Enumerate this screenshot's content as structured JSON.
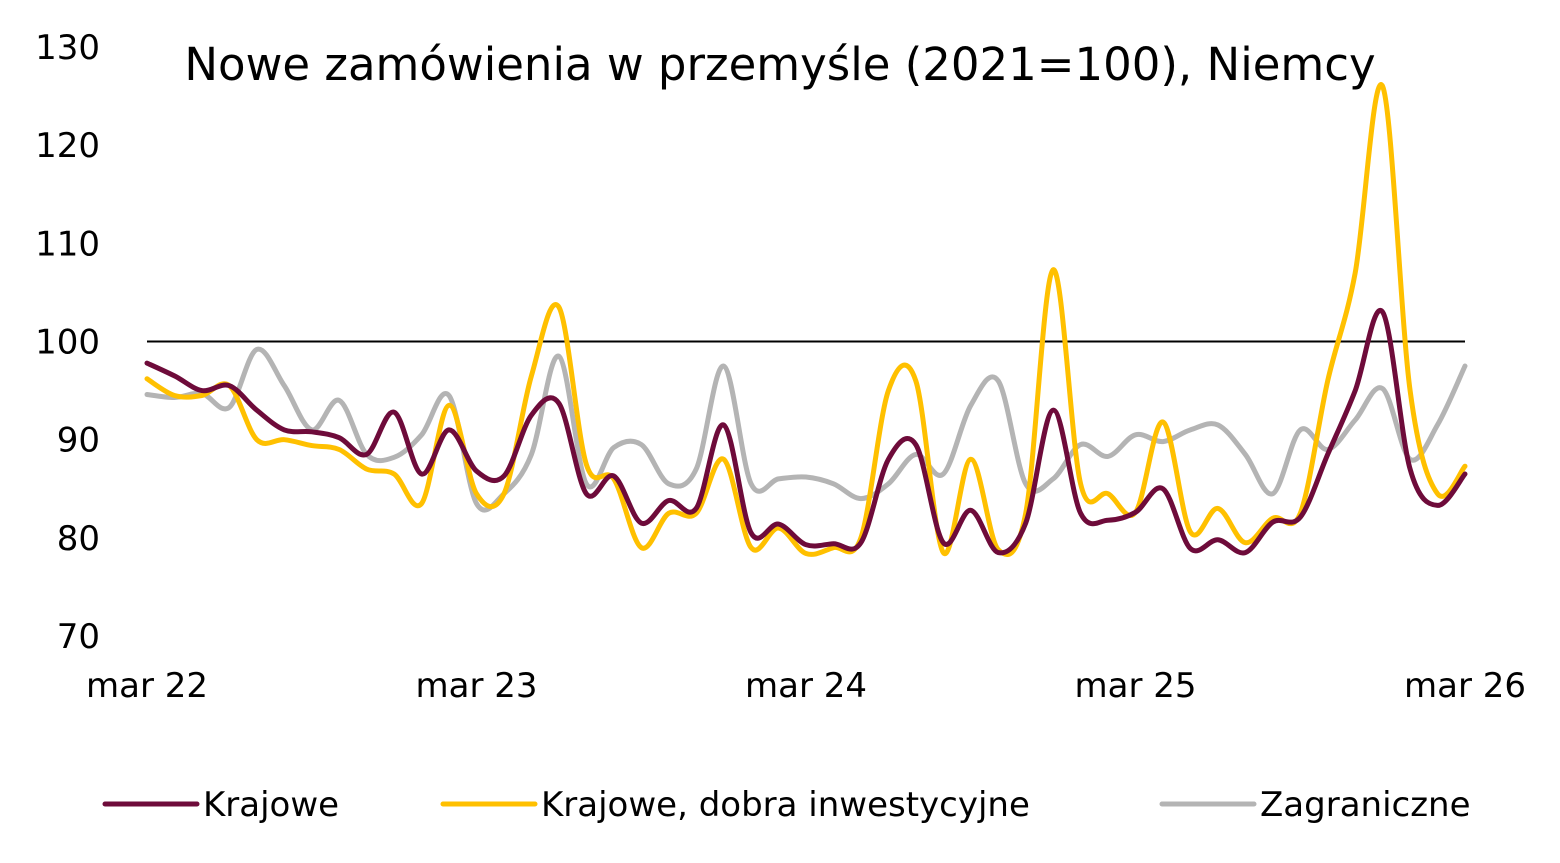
{
  "chart_data": {
    "type": "line",
    "title": "Nowe zamówienia w przemyśle (2021=100), Niemcy",
    "xlabel": "",
    "ylabel": "",
    "ylim": [
      70,
      130
    ],
    "yticks": [
      70,
      80,
      90,
      100,
      110,
      120,
      130
    ],
    "xlim": [
      "2022-03",
      "2026-03"
    ],
    "xticks": [
      {
        "date": "2022-03",
        "label": "mar 22"
      },
      {
        "date": "2023-03",
        "label": "mar 23"
      },
      {
        "date": "2024-03",
        "label": "mar 24"
      },
      {
        "date": "2025-03",
        "label": "mar 25"
      },
      {
        "date": "2026-03",
        "label": "mar 26"
      }
    ],
    "reference_line": 100,
    "grid": false,
    "legend_position": "bottom",
    "x": [
      "2022-03",
      "2022-04",
      "2022-05",
      "2022-06",
      "2022-07",
      "2022-08",
      "2022-09",
      "2022-10",
      "2022-11",
      "2022-12",
      "2023-01",
      "2023-02",
      "2023-03",
      "2023-04",
      "2023-05",
      "2023-06",
      "2023-07",
      "2023-08",
      "2023-09",
      "2023-10",
      "2023-11",
      "2023-12",
      "2024-01",
      "2024-02",
      "2024-03",
      "2024-04",
      "2024-05",
      "2024-06",
      "2024-07",
      "2024-08",
      "2024-09",
      "2024-10",
      "2024-11",
      "2024-12",
      "2025-01",
      "2025-02",
      "2025-03",
      "2025-04",
      "2025-05",
      "2025-06",
      "2025-07",
      "2025-08",
      "2025-09",
      "2025-10",
      "2025-11",
      "2025-12",
      "2026-01",
      "2026-02",
      "2026-03"
    ],
    "series": [
      {
        "name": "Krajowe",
        "color": "#6e0b3a",
        "values": [
          97.8,
          96.5,
          95.0,
          95.5,
          93.0,
          91.0,
          90.8,
          90.2,
          88.5,
          92.8,
          86.5,
          91.0,
          86.8,
          86.3,
          92.5,
          93.7,
          84.5,
          86.3,
          81.5,
          83.8,
          83.0,
          91.5,
          80.5,
          81.4,
          79.3,
          79.4,
          79.5,
          88.0,
          89.5,
          79.5,
          82.8,
          78.5,
          81.5,
          93.0,
          82.5,
          81.8,
          82.6,
          85.0,
          78.9,
          79.8,
          78.5,
          81.6,
          82.1,
          88.5,
          95.0,
          103.0,
          87.0,
          83.3,
          86.5
        ]
      },
      {
        "name": "Krajowe, dobra inwestycyjne",
        "color": "#ffc000",
        "values": [
          96.2,
          94.5,
          94.5,
          95.5,
          90.0,
          90.0,
          89.4,
          89.0,
          87.0,
          86.5,
          83.5,
          93.5,
          84.5,
          84.5,
          96.5,
          103.5,
          87.5,
          86.0,
          79.0,
          82.5,
          82.5,
          88.0,
          79.0,
          81.0,
          78.4,
          79.0,
          80.0,
          95.0,
          96.0,
          78.5,
          88.0,
          78.8,
          82.5,
          107.3,
          85.5,
          84.5,
          82.6,
          91.8,
          80.6,
          83.0,
          79.5,
          82.0,
          82.5,
          96.0,
          107.0,
          126.0,
          95.0,
          84.5,
          87.3
        ]
      },
      {
        "name": "Zagraniczne",
        "color": "#b4b4b4",
        "values": [
          94.6,
          94.3,
          94.7,
          93.3,
          99.2,
          95.5,
          91.0,
          94.0,
          88.5,
          88.2,
          90.5,
          94.5,
          83.5,
          84.5,
          88.5,
          98.5,
          85.5,
          89.2,
          89.5,
          85.5,
          87.0,
          97.5,
          85.5,
          86.0,
          86.2,
          85.5,
          84.0,
          85.5,
          88.5,
          86.5,
          93.5,
          96.0,
          85.5,
          86.0,
          89.5,
          88.3,
          90.5,
          89.8,
          91.0,
          91.5,
          88.5,
          84.5,
          91.0,
          89.0,
          92.0,
          95.2,
          88.0,
          91.5,
          97.5
        ]
      }
    ]
  }
}
